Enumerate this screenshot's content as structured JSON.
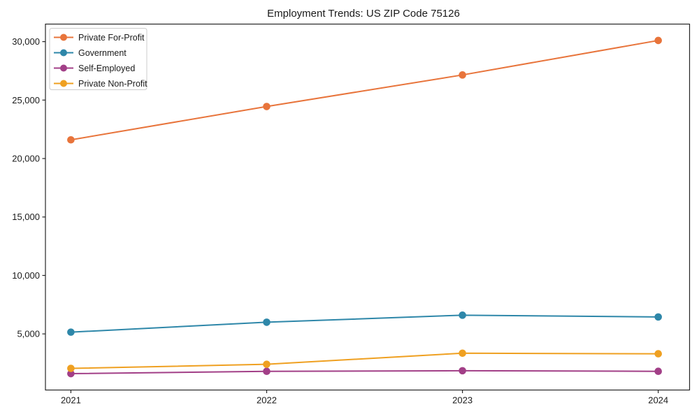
{
  "chart_data": {
    "type": "line",
    "title": "Employment Trends: US ZIP Code 75126",
    "x": [
      2021,
      2022,
      2023,
      2024
    ],
    "x_tick_labels": [
      "2021",
      "2022",
      "2023",
      "2024"
    ],
    "y_ticks": [
      5000,
      10000,
      15000,
      20000,
      25000,
      30000
    ],
    "y_tick_labels": [
      "5,000",
      "10,000",
      "15,000",
      "20,000",
      "25,000",
      "30,000"
    ],
    "xlim": [
      2020.87,
      2024.16
    ],
    "ylim": [
      200,
      31500
    ],
    "grid": false,
    "marker": "circle",
    "legend_position": "upper-left",
    "series": [
      {
        "name": "Private For-Profit",
        "color": "#e8743b",
        "values": [
          21600,
          24450,
          27150,
          30100
        ]
      },
      {
        "name": "Government",
        "color": "#2e87a9",
        "values": [
          5150,
          6000,
          6600,
          6450
        ]
      },
      {
        "name": "Self-Employed",
        "color": "#a23f87",
        "values": [
          1600,
          1800,
          1850,
          1800
        ]
      },
      {
        "name": "Private Non-Profit",
        "color": "#efa021",
        "values": [
          2050,
          2400,
          3350,
          3300
        ]
      }
    ]
  }
}
